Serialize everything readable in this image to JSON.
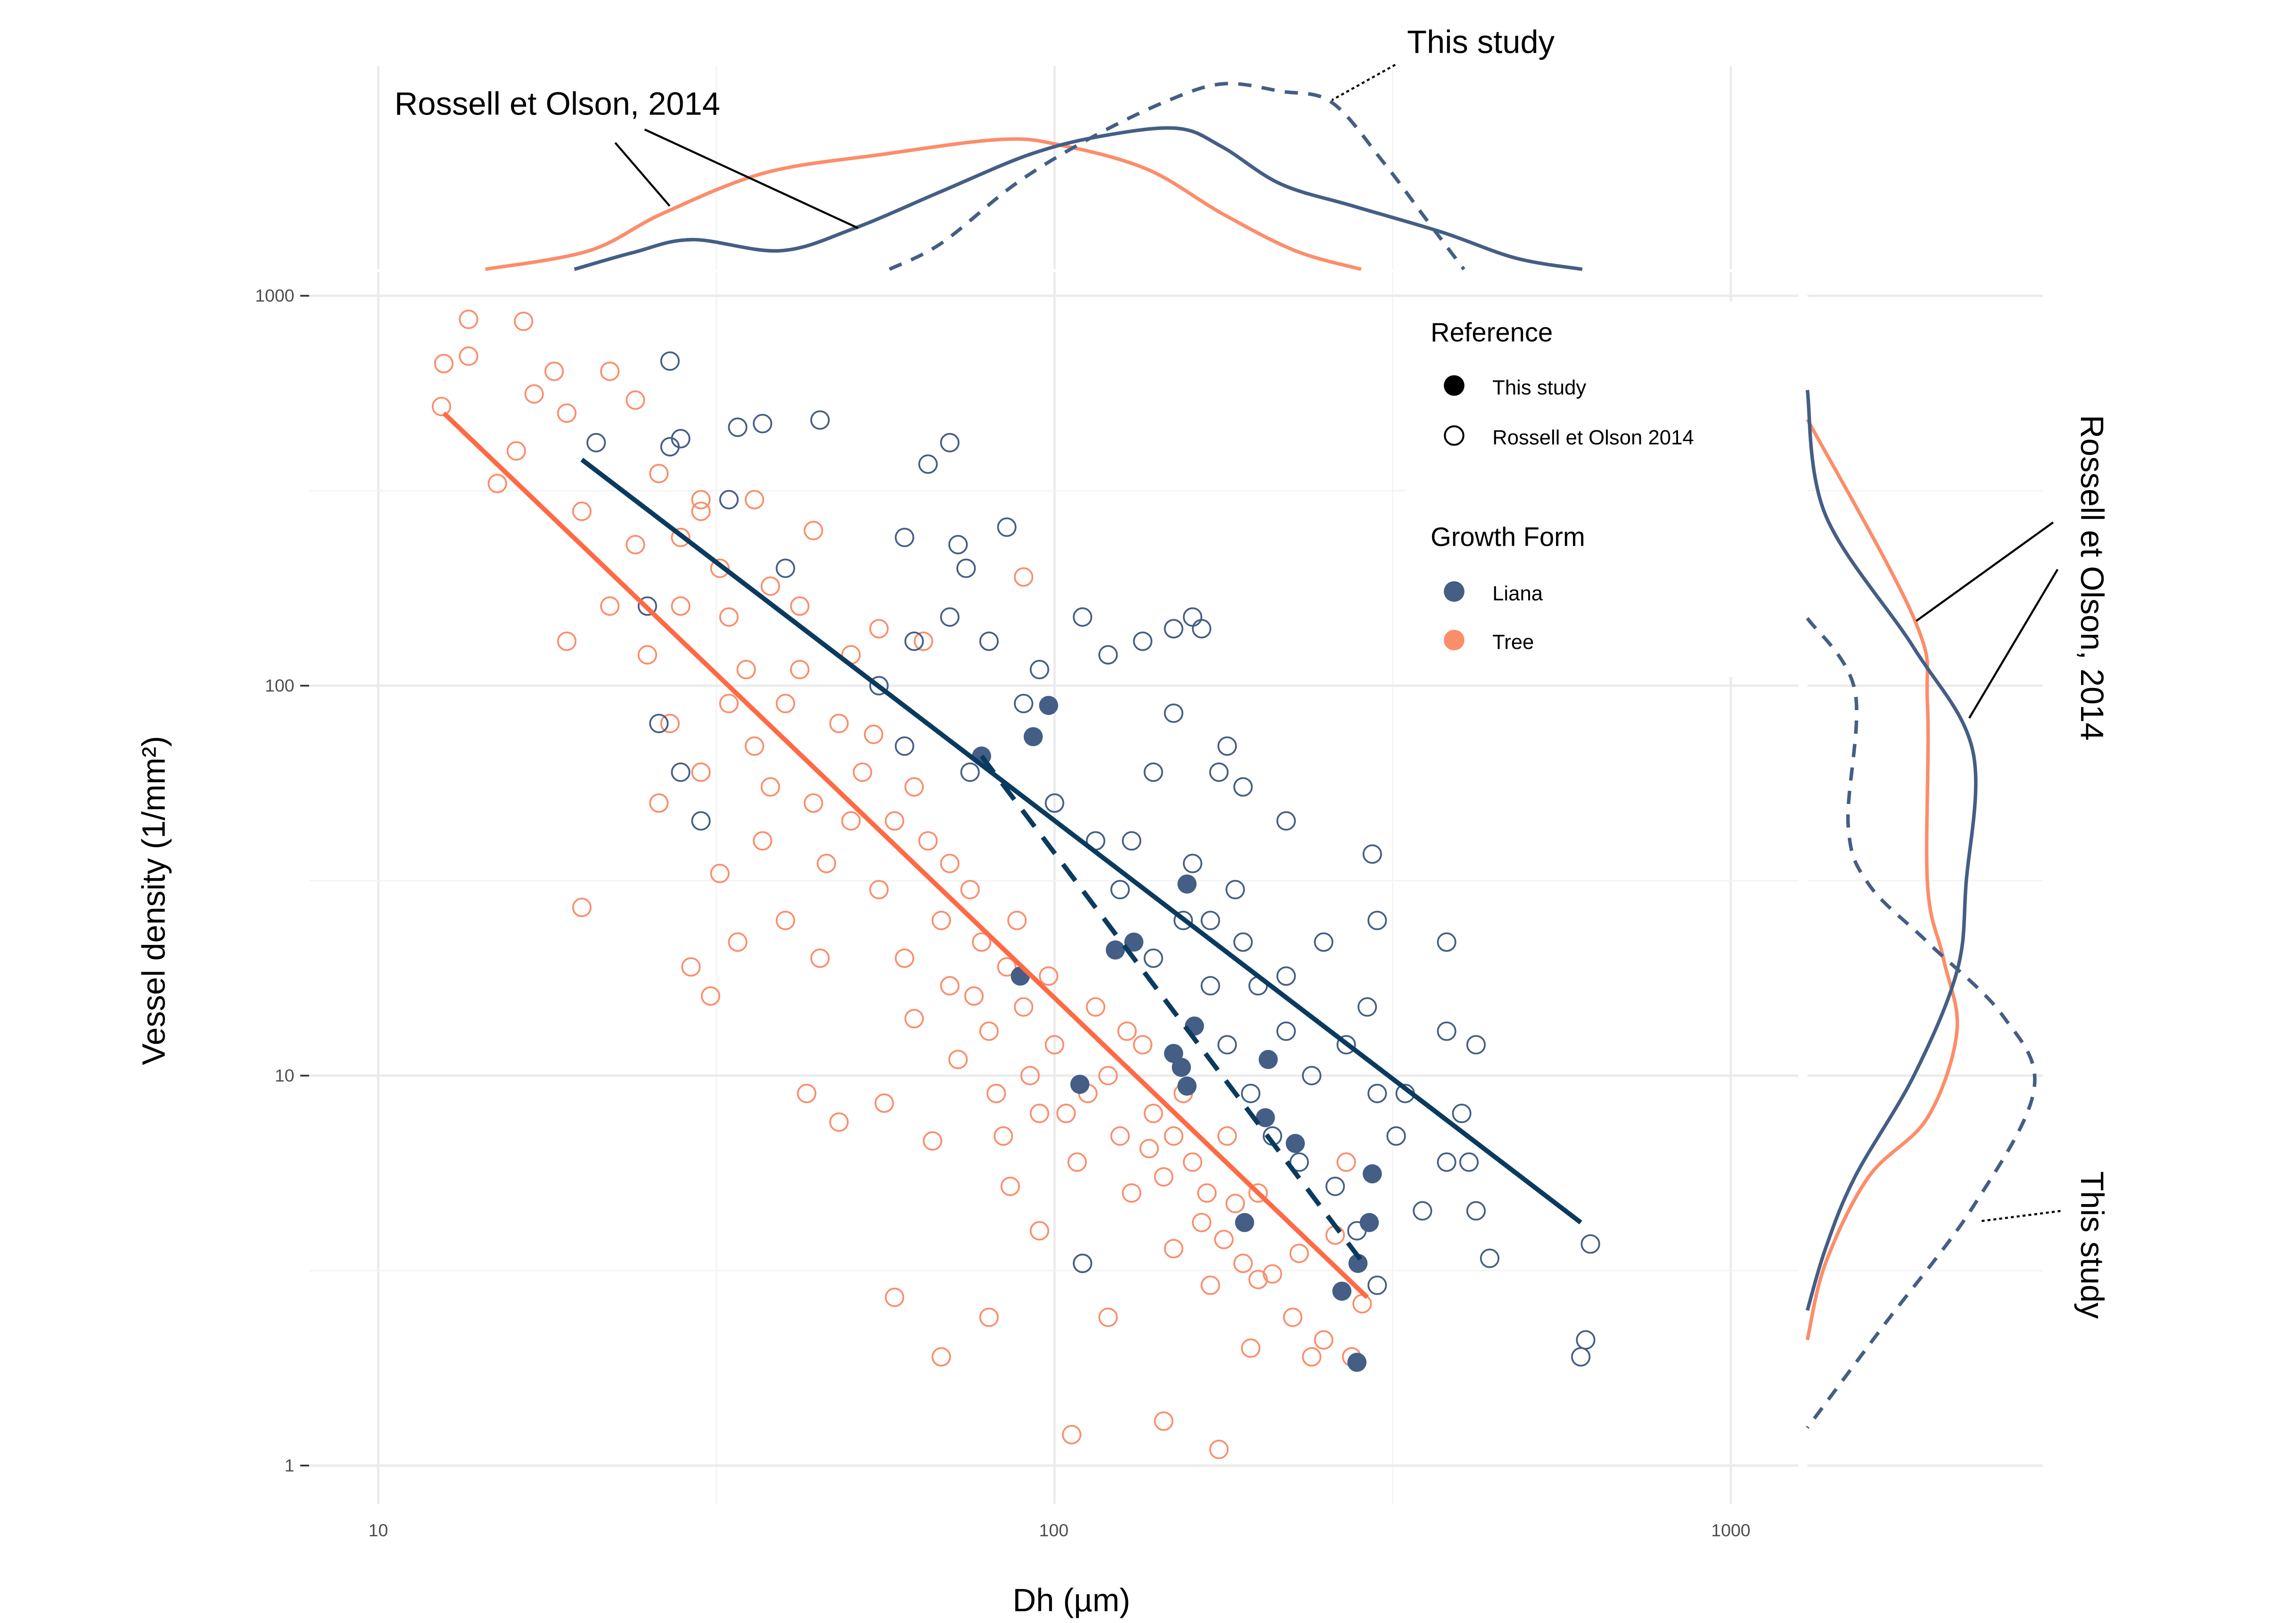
{
  "chart_data": {
    "type": "scatter",
    "xlabel": "Dh (µm)",
    "ylabel": "Vessel density (1/mm²)",
    "xscale": "log10",
    "yscale": "log10",
    "xlim": [
      8,
      1100
    ],
    "ylim": [
      0.9,
      1100
    ],
    "x_ticks": [
      {
        "value": 10,
        "label": "10"
      },
      {
        "value": 100,
        "label": "100"
      },
      {
        "value": 1000,
        "label": "1000"
      }
    ],
    "y_ticks": [
      {
        "value": 1,
        "label": "1"
      },
      {
        "value": 10,
        "label": "10"
      },
      {
        "value": 100,
        "label": "100"
      },
      {
        "value": 1000,
        "label": "1000"
      }
    ],
    "grid": true,
    "colors": {
      "Liana": "#445e85",
      "Tree": "#fc8d6a",
      "liana_fit": "#0b3a5f",
      "tree_fit": "#ff6a45"
    },
    "legend": {
      "placement": "top-right",
      "reference_title": "Reference",
      "reference_items": [
        {
          "label": "This study",
          "marker": "filled"
        },
        {
          "label": "Rossell et Olson 2014",
          "marker": "hollow"
        }
      ],
      "growth_title": "Growth Form",
      "growth_items": [
        {
          "label": "Liana",
          "color": "#445e85"
        },
        {
          "label": "Tree",
          "color": "#fc8d6a"
        }
      ]
    },
    "series": [
      {
        "name": "Tree - Rossell et Olson 2014",
        "growth_form": "Tree",
        "reference": "Rossell et Olson 2014",
        "filled": false,
        "points": [
          [
            12.5,
            670
          ],
          [
            13.6,
            870
          ],
          [
            16.4,
            860
          ],
          [
            13.6,
            700
          ],
          [
            12.4,
            520
          ],
          [
            18.2,
            640
          ],
          [
            16,
            400
          ],
          [
            15,
            330
          ],
          [
            17,
            560
          ],
          [
            19,
            500
          ],
          [
            20,
            280
          ],
          [
            22,
            640
          ],
          [
            24,
            540
          ],
          [
            26,
            350
          ],
          [
            19,
            130
          ],
          [
            22,
            160
          ],
          [
            20,
            27
          ],
          [
            25,
            120
          ],
          [
            28,
            240
          ],
          [
            30,
            300
          ],
          [
            32,
            200
          ],
          [
            27,
            80
          ],
          [
            26,
            50
          ],
          [
            30,
            60
          ],
          [
            33,
            150
          ],
          [
            35,
            110
          ],
          [
            38,
            180
          ],
          [
            40,
            90
          ],
          [
            42,
            160
          ],
          [
            36,
            70
          ],
          [
            32,
            33
          ],
          [
            29,
            19
          ],
          [
            31,
            16
          ],
          [
            34,
            22
          ],
          [
            37,
            40
          ],
          [
            40,
            25
          ],
          [
            44,
            50
          ],
          [
            46,
            35
          ],
          [
            48,
            80
          ],
          [
            50,
            120
          ],
          [
            52,
            60
          ],
          [
            45,
            20
          ],
          [
            43,
            9
          ],
          [
            48,
            7.6
          ],
          [
            55,
            30
          ],
          [
            58,
            45
          ],
          [
            60,
            20
          ],
          [
            62,
            14
          ],
          [
            56,
            8.5
          ],
          [
            65,
            40
          ],
          [
            68,
            25
          ],
          [
            70,
            17
          ],
          [
            72,
            11
          ],
          [
            66,
            6.8
          ],
          [
            75,
            30
          ],
          [
            78,
            22
          ],
          [
            80,
            13
          ],
          [
            82,
            9
          ],
          [
            84,
            7
          ],
          [
            88,
            25
          ],
          [
            90,
            15
          ],
          [
            92,
            10
          ],
          [
            86,
            5.2
          ],
          [
            95,
            4
          ],
          [
            98,
            18
          ],
          [
            100,
            12
          ],
          [
            104,
            8
          ],
          [
            108,
            6
          ],
          [
            110,
            3.3
          ],
          [
            106,
            1.2
          ],
          [
            115,
            15
          ],
          [
            120,
            10
          ],
          [
            125,
            7
          ],
          [
            130,
            5
          ],
          [
            120,
            2.4
          ],
          [
            135,
            12
          ],
          [
            140,
            8
          ],
          [
            145,
            5.5
          ],
          [
            150,
            3.6
          ],
          [
            145,
            1.3
          ],
          [
            155,
            9
          ],
          [
            160,
            6
          ],
          [
            165,
            4.2
          ],
          [
            170,
            2.9
          ],
          [
            175,
            1.1
          ],
          [
            180,
            7
          ],
          [
            185,
            4.7
          ],
          [
            190,
            3.3
          ],
          [
            195,
            2
          ],
          [
            200,
            5
          ],
          [
            210,
            3.1
          ],
          [
            225,
            2.4
          ],
          [
            240,
            1.9
          ],
          [
            260,
            3.9
          ],
          [
            270,
            6
          ],
          [
            285,
            2.6
          ],
          [
            68,
            1.9
          ],
          [
            58,
            2.7
          ],
          [
            80,
            2.4
          ],
          [
            30,
            280
          ],
          [
            36,
            300
          ],
          [
            44,
            250
          ],
          [
            90,
            190
          ],
          [
            64,
            130
          ],
          [
            55,
            140
          ],
          [
            24,
            230
          ],
          [
            28,
            160
          ],
          [
            33,
            90
          ],
          [
            38,
            55
          ],
          [
            42,
            110
          ],
          [
            50,
            45
          ],
          [
            54,
            75
          ],
          [
            62,
            55
          ],
          [
            70,
            35
          ],
          [
            76,
            16
          ],
          [
            85,
            19
          ],
          [
            95,
            8
          ],
          [
            112,
            9
          ],
          [
            128,
            13
          ],
          [
            138,
            6.5
          ],
          [
            150,
            7
          ],
          [
            168,
            5
          ],
          [
            178,
            3.8
          ],
          [
            200,
            3
          ],
          [
            230,
            3.5
          ],
          [
            250,
            2.1
          ],
          [
            275,
            1.9
          ]
        ]
      },
      {
        "name": "Liana - Rossell et Olson 2014",
        "growth_form": "Liana",
        "reference": "Rossell et Olson 2014",
        "filled": false,
        "points": [
          [
            27,
            680
          ],
          [
            21,
            420
          ],
          [
            27,
            410
          ],
          [
            28,
            430
          ],
          [
            34,
            460
          ],
          [
            37,
            470
          ],
          [
            45,
            480
          ],
          [
            65,
            370
          ],
          [
            70,
            420
          ],
          [
            60,
            240
          ],
          [
            72,
            230
          ],
          [
            85,
            255
          ],
          [
            74,
            200
          ],
          [
            62,
            130
          ],
          [
            70,
            150
          ],
          [
            80,
            130
          ],
          [
            110,
            150
          ],
          [
            95,
            110
          ],
          [
            120,
            120
          ],
          [
            135,
            130
          ],
          [
            150,
            140
          ],
          [
            160,
            150
          ],
          [
            165,
            140
          ],
          [
            180,
            70
          ],
          [
            150,
            85
          ],
          [
            140,
            60
          ],
          [
            175,
            60
          ],
          [
            190,
            55
          ],
          [
            220,
            45
          ],
          [
            130,
            40
          ],
          [
            160,
            35
          ],
          [
            185,
            30
          ],
          [
            170,
            25
          ],
          [
            190,
            22
          ],
          [
            200,
            17
          ],
          [
            220,
            18
          ],
          [
            250,
            22
          ],
          [
            300,
            25
          ],
          [
            295,
            37
          ],
          [
            380,
            22
          ],
          [
            290,
            15
          ],
          [
            380,
            13
          ],
          [
            420,
            12
          ],
          [
            300,
            9
          ],
          [
            320,
            7
          ],
          [
            330,
            9
          ],
          [
            380,
            6
          ],
          [
            420,
            4.5
          ],
          [
            440,
            3.4
          ],
          [
            600,
            1.9
          ],
          [
            610,
            2.1
          ],
          [
            620,
            3.7
          ],
          [
            270,
            12
          ],
          [
            240,
            10
          ],
          [
            220,
            13
          ],
          [
            210,
            7
          ],
          [
            260,
            5.2
          ],
          [
            110,
            3.3
          ],
          [
            300,
            2.9
          ],
          [
            26,
            80
          ],
          [
            28,
            60
          ],
          [
            25,
            160
          ],
          [
            30,
            45
          ],
          [
            33,
            300
          ],
          [
            40,
            200
          ],
          [
            55,
            100
          ],
          [
            60,
            70
          ],
          [
            75,
            60
          ],
          [
            90,
            90
          ],
          [
            100,
            50
          ],
          [
            115,
            40
          ],
          [
            125,
            30
          ],
          [
            140,
            20
          ],
          [
            155,
            25
          ],
          [
            170,
            17
          ],
          [
            180,
            12
          ],
          [
            195,
            9
          ],
          [
            230,
            6
          ],
          [
            280,
            4
          ],
          [
            350,
            4.5
          ],
          [
            400,
            8
          ],
          [
            410,
            6
          ]
        ]
      },
      {
        "name": "Liana - This study",
        "growth_form": "Liana",
        "reference": "This study",
        "filled": true,
        "points": [
          [
            98,
            89
          ],
          [
            93,
            74
          ],
          [
            78,
            66
          ],
          [
            157,
            31
          ],
          [
            131,
            22
          ],
          [
            123,
            21
          ],
          [
            89,
            18
          ],
          [
            161,
            13.4
          ],
          [
            150,
            11.4
          ],
          [
            154,
            10.5
          ],
          [
            207,
            11
          ],
          [
            157,
            9.4
          ],
          [
            109,
            9.5
          ],
          [
            205,
            7.8
          ],
          [
            227,
            6.7
          ],
          [
            295,
            5.6
          ],
          [
            191,
            4.2
          ],
          [
            292,
            4.2
          ],
          [
            281,
            3.3
          ],
          [
            266,
            2.8
          ],
          [
            280,
            1.84
          ]
        ]
      }
    ],
    "fit_lines": [
      {
        "name": "Tree fit (Rossell et Olson 2014)",
        "style": "solid",
        "color": "#ff6a45",
        "from": [
          12.5,
          500
        ],
        "to": [
          290,
          2.7
        ]
      },
      {
        "name": "Liana fit (Rossell et Olson 2014)",
        "style": "solid",
        "color": "#0b3a5f",
        "from": [
          20,
          380
        ],
        "to": [
          600,
          4.2
        ]
      },
      {
        "name": "Liana fit (This study)",
        "style": "dashed",
        "color": "#0b3a5f",
        "from": [
          78,
          66
        ],
        "to": [
          290,
          3.2
        ]
      }
    ],
    "marginal_x_density": [
      {
        "name": "Tree - Rossell et Olson 2014",
        "style": "solid",
        "color": "#fc8d6a",
        "x": [
          14.4,
          20.5,
          26.3,
          37.3,
          55.7,
          83,
          102,
          137,
          177,
          227,
          284
        ],
        "density": [
          0,
          0.1,
          0.3,
          0.52,
          0.62,
          0.7,
          0.67,
          0.54,
          0.3,
          0.1,
          0
        ]
      },
      {
        "name": "Liana - Rossell et Olson 2014",
        "style": "solid",
        "color": "#445e85",
        "x": [
          19.5,
          23.8,
          29.1,
          39.3,
          50.5,
          68,
          92,
          118,
          152,
          177,
          216,
          277,
          374,
          481,
          603
        ],
        "density": [
          0,
          0.09,
          0.16,
          0.1,
          0.22,
          0.42,
          0.62,
          0.72,
          0.76,
          0.66,
          0.46,
          0.34,
          0.2,
          0.06,
          0
        ]
      },
      {
        "name": "Liana - This study",
        "style": "dashed",
        "color": "#445e85",
        "x": [
          57,
          68,
          87.5,
          112,
          145,
          177,
          216,
          257,
          306,
          356,
          403
        ],
        "density": [
          0,
          0.14,
          0.46,
          0.7,
          0.9,
          1.0,
          0.96,
          0.9,
          0.58,
          0.26,
          0
        ]
      }
    ],
    "marginal_y_density": [
      {
        "name": "Tree - Rossell et Olson 2014",
        "style": "solid",
        "color": "#fc8d6a",
        "y": [
          482,
          149,
          89,
          31,
          20,
          13,
          7.8,
          5.5,
          3.3,
          2.1
        ],
        "density": [
          0,
          0.47,
          0.53,
          0.53,
          0.6,
          0.66,
          0.53,
          0.27,
          0.08,
          0
        ]
      },
      {
        "name": "Liana - Rossell et Olson 2014",
        "style": "solid",
        "color": "#445e85",
        "y": [
          573,
          274,
          125,
          68,
          31,
          18.5,
          10,
          5.5,
          3.6,
          2.5
        ],
        "density": [
          0,
          0.08,
          0.47,
          0.73,
          0.7,
          0.66,
          0.47,
          0.21,
          0.08,
          0
        ]
      },
      {
        "name": "Liana - This study",
        "style": "dashed",
        "color": "#445e85",
        "y": [
          149,
          97,
          44,
          31,
          22,
          14.3,
          9.2,
          4.6,
          2.3,
          1.25
        ],
        "density": [
          0,
          0.21,
          0.18,
          0.27,
          0.53,
          0.86,
          1.0,
          0.73,
          0.34,
          0
        ]
      }
    ],
    "annotations": {
      "top_this_study": "This study",
      "top_rossell": "Rossell et Olson, 2014",
      "right_rossell": "Rossell et Olson, 2014",
      "right_this_study": "This study"
    }
  }
}
